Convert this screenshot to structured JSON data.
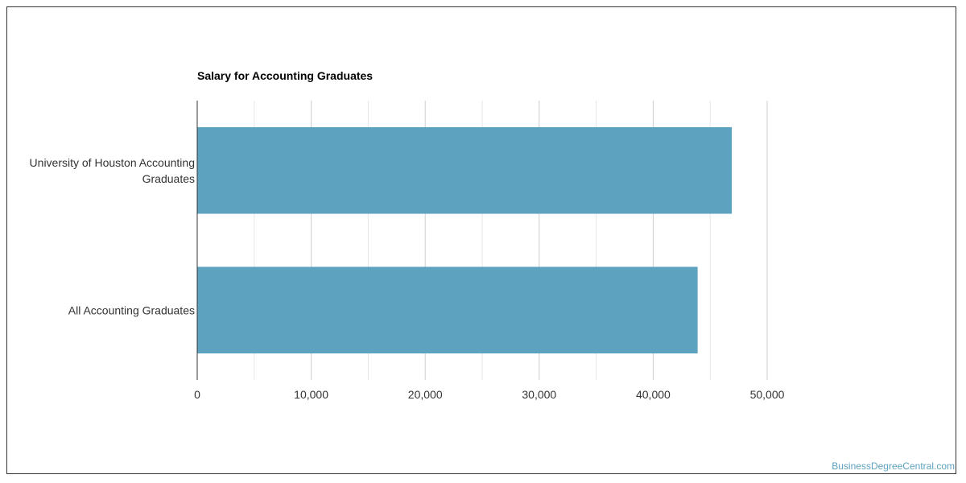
{
  "chart_data": {
    "type": "bar",
    "orientation": "horizontal",
    "title": "Salary for Accounting Graduates",
    "categories": [
      [
        "University of Houston Accounting",
        "Graduates"
      ],
      [
        "All Accounting Graduates"
      ]
    ],
    "values": [
      46900,
      43900
    ],
    "xlim": [
      0,
      50000
    ],
    "xticks": [
      0,
      10000,
      20000,
      30000,
      40000,
      50000
    ],
    "xtick_labels": [
      "0",
      "10,000",
      "20,000",
      "30,000",
      "40,000",
      "50,000"
    ],
    "grid": true,
    "bar_color": "#5da2bf"
  },
  "footer": {
    "watermark": "BusinessDegreeCentral.com"
  }
}
